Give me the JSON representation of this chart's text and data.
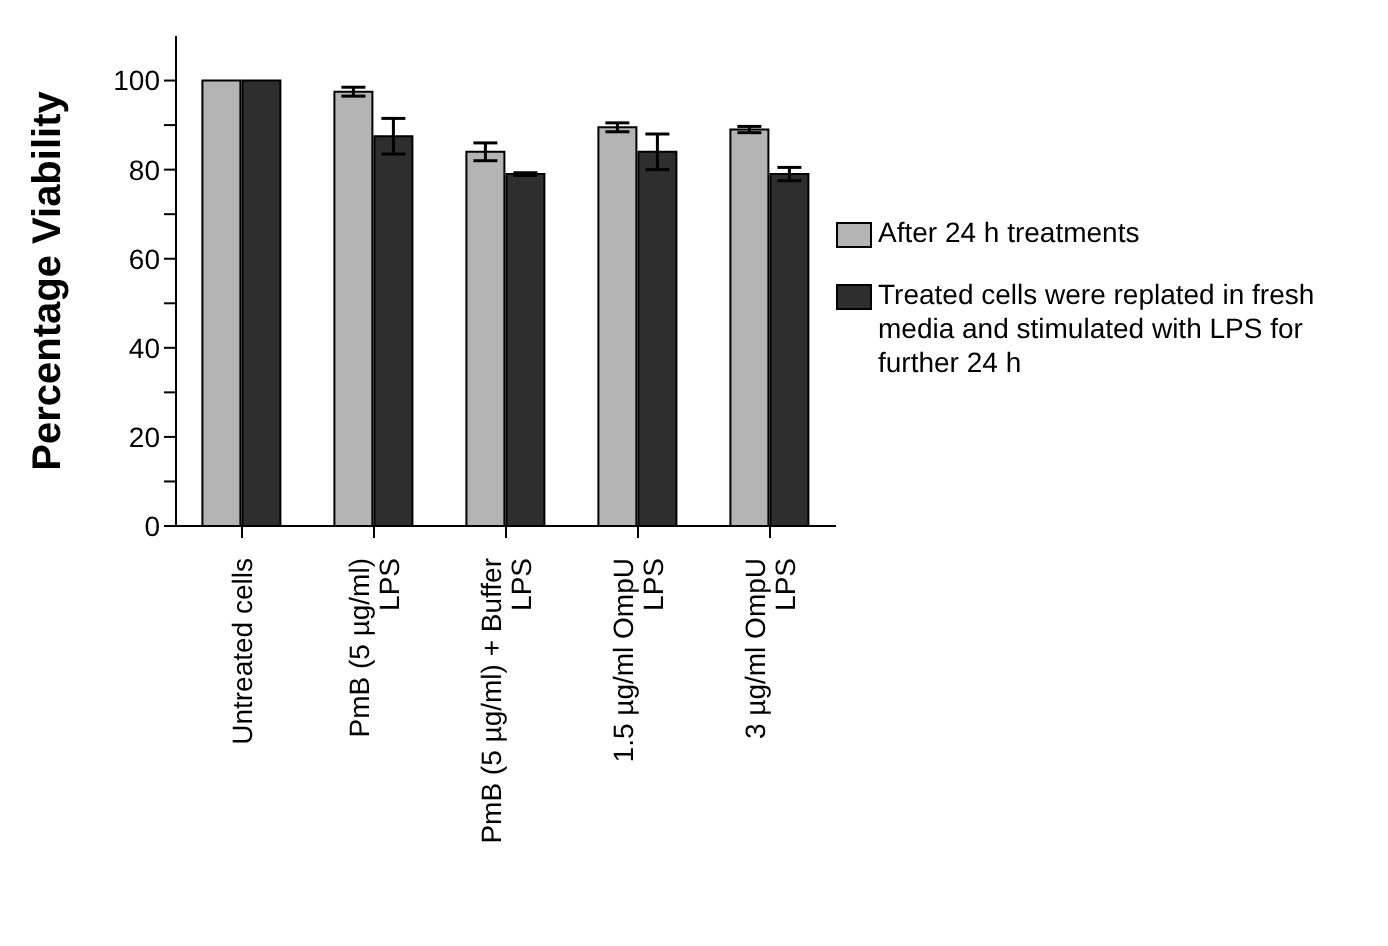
{
  "chart_data": {
    "type": "bar",
    "ylabel": "Percentage Viability",
    "categories": [
      "Untreated cells",
      "PmB (5 µg/ml)\nLPS",
      "PmB (5 µg/ml) + Buffer\nLPS",
      "1.5 µg/ml OmpU\nLPS",
      "3 µg/ml OmpU\nLPS"
    ],
    "series": [
      {
        "name": "After 24 h treatments",
        "color": "#b4b4b4",
        "values": [
          100,
          97.5,
          84,
          89.5,
          89
        ],
        "errors": [
          null,
          1,
          2,
          1,
          0.7
        ]
      },
      {
        "name": "Treated cells were replated in fresh media and stimulated with LPS for further 24 h",
        "color": "#2e2e2e",
        "values": [
          100,
          87.5,
          79,
          84,
          79
        ],
        "errors": [
          null,
          4,
          0.3,
          4,
          1.5
        ]
      }
    ],
    "ylim": [
      0,
      110
    ],
    "yticks": [
      0,
      {
        "value": 10,
        "label": null
      },
      20,
      {
        "value": 30,
        "label": null
      },
      40,
      {
        "value": 50,
        "label": null
      },
      60,
      {
        "value": 70,
        "label": null
      },
      80,
      {
        "value": 90,
        "label": null
      },
      100
    ],
    "grid": false,
    "legend": "right"
  }
}
